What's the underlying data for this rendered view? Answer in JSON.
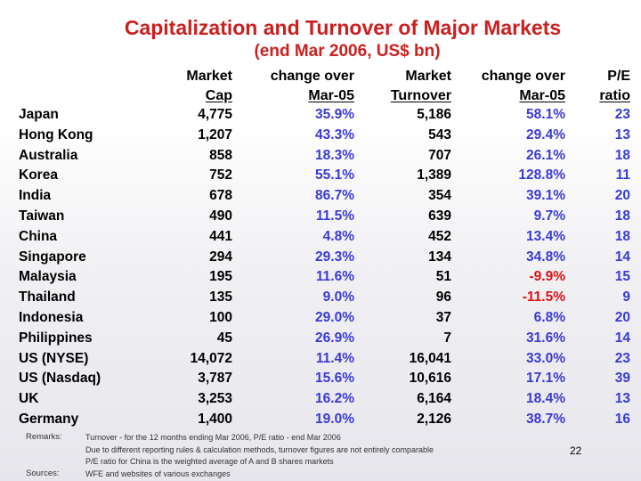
{
  "title": "Capitalization and Turnover of Major Markets",
  "subtitle": "(end Mar 2006, US$ bn)",
  "headers": {
    "market_cap": [
      "Market",
      "Cap"
    ],
    "cap_change": [
      "change over",
      "Mar-05"
    ],
    "market_turnover": [
      "Market",
      "Turnover"
    ],
    "turnover_change": [
      "change over",
      "Mar-05"
    ],
    "pe_ratio": [
      "P/E",
      "ratio"
    ]
  },
  "rows": [
    {
      "market": "Japan",
      "cap": "4,775",
      "cap_change": "35.9%",
      "turnover": "5,186",
      "turnover_change": "58.1%",
      "pe": "23"
    },
    {
      "market": "Hong Kong",
      "cap": "1,207",
      "cap_change": "43.3%",
      "turnover": "543",
      "turnover_change": "29.4%",
      "pe": "13"
    },
    {
      "market": "Australia",
      "cap": "858",
      "cap_change": "18.3%",
      "turnover": "707",
      "turnover_change": "26.1%",
      "pe": "18"
    },
    {
      "market": "Korea",
      "cap": "752",
      "cap_change": "55.1%",
      "turnover": "1,389",
      "turnover_change": "128.8%",
      "pe": "11"
    },
    {
      "market": "India",
      "cap": "678",
      "cap_change": "86.7%",
      "turnover": "354",
      "turnover_change": "39.1%",
      "pe": "20"
    },
    {
      "market": "Taiwan",
      "cap": "490",
      "cap_change": "11.5%",
      "turnover": "639",
      "turnover_change": "9.7%",
      "pe": "18"
    },
    {
      "market": "China",
      "cap": "441",
      "cap_change": "4.8%",
      "turnover": "452",
      "turnover_change": "13.4%",
      "pe": "18"
    },
    {
      "market": "Singapore",
      "cap": "294",
      "cap_change": "29.3%",
      "turnover": "134",
      "turnover_change": "34.8%",
      "pe": "14"
    },
    {
      "market": "Malaysia",
      "cap": "195",
      "cap_change": "11.6%",
      "turnover": "51",
      "turnover_change": "-9.9%",
      "pe": "15"
    },
    {
      "market": "Thailand",
      "cap": "135",
      "cap_change": "9.0%",
      "turnover": "96",
      "turnover_change": "-11.5%",
      "pe": "9"
    },
    {
      "market": "Indonesia",
      "cap": "100",
      "cap_change": "29.0%",
      "turnover": "37",
      "turnover_change": "6.8%",
      "pe": "20"
    },
    {
      "market": "Philippines",
      "cap": "45",
      "cap_change": "26.9%",
      "turnover": "7",
      "turnover_change": "31.6%",
      "pe": "14"
    },
    {
      "market": "US (NYSE)",
      "cap": "14,072",
      "cap_change": "11.4%",
      "turnover": "16,041",
      "turnover_change": "33.0%",
      "pe": "23"
    },
    {
      "market": "US (Nasdaq)",
      "cap": "3,787",
      "cap_change": "15.6%",
      "turnover": "10,616",
      "turnover_change": "17.1%",
      "pe": "39"
    },
    {
      "market": "UK",
      "cap": "3,253",
      "cap_change": "16.2%",
      "turnover": "6,164",
      "turnover_change": "18.4%",
      "pe": "13"
    },
    {
      "market": "Germany",
      "cap": "1,400",
      "cap_change": "19.0%",
      "turnover": "2,126",
      "turnover_change": "38.7%",
      "pe": "16"
    }
  ],
  "remarks_label": "Remarks:",
  "remarks": [
    "Turnover - for the 12 months ending Mar 2006, P/E ratio - end Mar 2006",
    "Due to different reporting rules & calculation methods, turnover figures are not entirely comparable",
    "P/E ratio for China is the weighted average of A and B shares markets"
  ],
  "sources_label": "Sources:",
  "sources": "WFE and websites of various exchanges",
  "page_number": "22"
}
